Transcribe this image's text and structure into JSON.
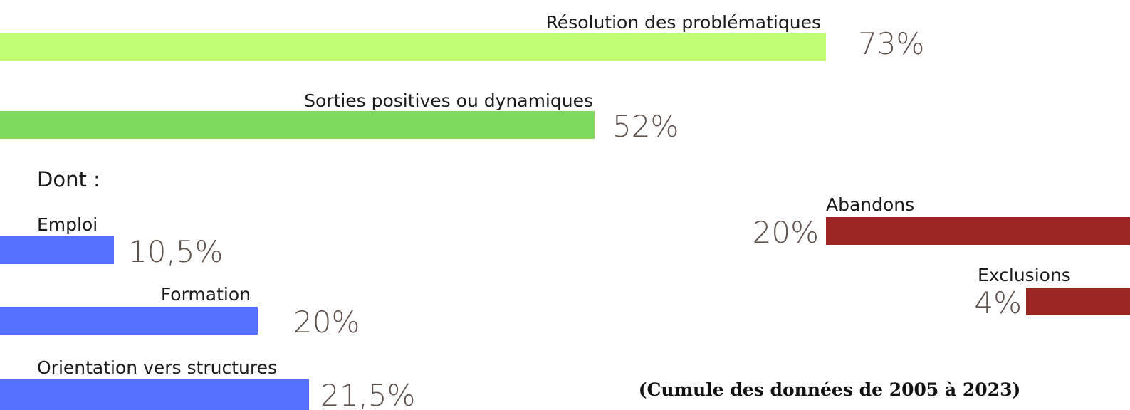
{
  "main": [
    {
      "label": "Résolution des problématiques",
      "value": "73%"
    },
    {
      "label": "Sorties positives ou dynamiques",
      "value": "52%"
    }
  ],
  "sub_heading": "Dont :",
  "sub": [
    {
      "label": "Emploi",
      "value": "10,5%"
    },
    {
      "label": "Formation",
      "value": "20%"
    },
    {
      "label": "Orientation vers structures",
      "value": "21,5%"
    }
  ],
  "negative": [
    {
      "label": "Abandons",
      "value": "20%"
    },
    {
      "label": "Exclusions",
      "value": "4%"
    }
  ],
  "note": "(Cumule des données de 2005 à 2023)"
}
